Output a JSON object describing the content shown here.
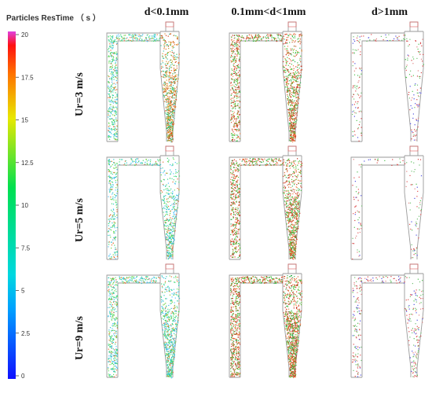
{
  "colorbar": {
    "title": "Particles ResTime （ s ）",
    "ticks": [
      "20",
      "17.5",
      "15",
      "12.5",
      "10",
      "7.5",
      "5",
      "2.5",
      "0"
    ],
    "colors": [
      "#1010ff",
      "#00c8ff",
      "#00e060",
      "#f0e000",
      "#ff4000",
      "#e040e0"
    ]
  },
  "columns": [
    {
      "label": "d<0.1mm"
    },
    {
      "label": "0.1mm<d<1mm"
    },
    {
      "label": "d>1mm"
    }
  ],
  "rows": [
    {
      "label": "Ur=3 m/s"
    },
    {
      "label": "Ur=5 m/s"
    },
    {
      "label": "Ur=9 m/s"
    }
  ]
}
